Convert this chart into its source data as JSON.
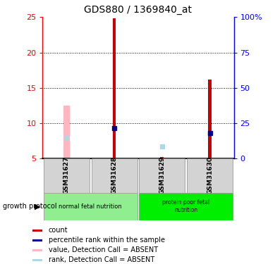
{
  "title": "GDS880 / 1369840_at",
  "samples": [
    "GSM31627",
    "GSM31628",
    "GSM31629",
    "GSM31630"
  ],
  "ylim_left": [
    5,
    25
  ],
  "ylim_right": [
    0,
    100
  ],
  "yticks_left": [
    5,
    10,
    15,
    20,
    25
  ],
  "yticks_right": [
    0,
    25,
    50,
    75,
    100
  ],
  "ytick_labels_right": [
    "0",
    "25",
    "50",
    "75",
    "100%"
  ],
  "red_bars": {
    "GSM31627": null,
    "GSM31628": 24.8,
    "GSM31629": 5.2,
    "GSM31630": 16.2
  },
  "blue_squares": {
    "GSM31627": null,
    "GSM31628": 9.3,
    "GSM31629": null,
    "GSM31630": 8.6
  },
  "pink_bars": {
    "GSM31627": 12.5,
    "GSM31628": null,
    "GSM31629": null,
    "GSM31630": null
  },
  "light_blue_squares": {
    "GSM31627": 7.9,
    "GSM31628": null,
    "GSM31629": 6.7,
    "GSM31630": null
  },
  "bar_bottom": 5,
  "red_bar_width": 0.07,
  "pink_bar_width": 0.13,
  "group1_color": "#d3d3d3",
  "group2_color": "#90ee90",
  "group1_label_color": "#90EE90",
  "group2_label_color": "#00EE00",
  "legend_items": [
    {
      "label": "count",
      "color": "#cc0000"
    },
    {
      "label": "percentile rank within the sample",
      "color": "#000099"
    },
    {
      "label": "value, Detection Call = ABSENT",
      "color": "#FFB6C1"
    },
    {
      "label": "rank, Detection Call = ABSENT",
      "color": "#ADD8E6"
    }
  ]
}
